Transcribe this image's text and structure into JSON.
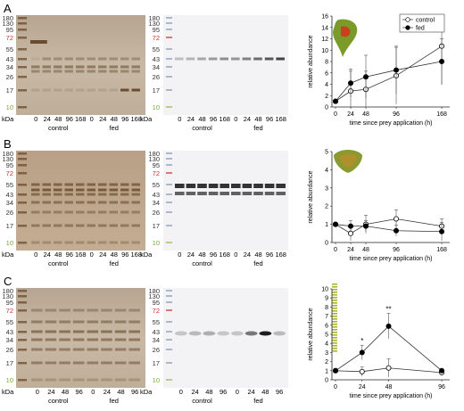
{
  "figure": {
    "panels": [
      {
        "label": "A",
        "gel_markers": [
          "180",
          "130",
          "95",
          "72",
          "55",
          "43",
          "34",
          "26",
          "17",
          "10"
        ],
        "gel_marker_colors": [
          "#333",
          "#333",
          "#333",
          "#d0302c",
          "#333",
          "#333",
          "#333",
          "#333",
          "#333",
          "#7aa83a"
        ],
        "gel_unit": "kDa",
        "blot_markers": [
          "180",
          "130",
          "95",
          "72",
          "55",
          "43",
          "34",
          "26",
          "17",
          "10"
        ],
        "blot_unit": "kDa",
        "lanes": [
          "0",
          "24",
          "48",
          "96",
          "168",
          "0",
          "24",
          "48",
          "96",
          "168"
        ],
        "group_labels": [
          "control",
          "fed"
        ],
        "chart_data": {
          "type": "line",
          "xlabel": "time since prey application (h)",
          "ylabel": "relative abundance",
          "ylim": [
            0,
            16
          ],
          "yticks": [
            0,
            2,
            4,
            6,
            8,
            10,
            12,
            14,
            16
          ],
          "xticks": [
            0,
            24,
            48,
            96,
            168
          ],
          "xlim": [
            0,
            175
          ],
          "legend": "top-right",
          "series": [
            {
              "name": "control",
              "marker": "open-circle",
              "x": [
                0,
                24,
                48,
                96,
                168
              ],
              "y": [
                1,
                2.8,
                3.1,
                5.5,
                10.7
              ],
              "err": [
                0,
                3.5,
                3.2,
                5,
                6.8
              ]
            },
            {
              "name": "fed",
              "marker": "filled-circle",
              "x": [
                0,
                24,
                48,
                96,
                168
              ],
              "y": [
                1,
                4.2,
                5.3,
                6.5,
                8
              ],
              "err": [
                0,
                2.5,
                3.8,
                4.2,
                4
              ]
            }
          ]
        }
      },
      {
        "label": "B",
        "gel_markers": [
          "180",
          "130",
          "95",
          "72",
          "55",
          "43",
          "34",
          "26",
          "17",
          "10"
        ],
        "gel_marker_colors": [
          "#333",
          "#333",
          "#333",
          "#d0302c",
          "#333",
          "#333",
          "#333",
          "#333",
          "#333",
          "#7aa83a"
        ],
        "gel_unit": "kDa",
        "blot_markers": [
          "180",
          "130",
          "95",
          "72",
          "55",
          "43",
          "34",
          "26",
          "17",
          "10"
        ],
        "blot_unit": "kDa",
        "lanes": [
          "0",
          "24",
          "48",
          "96",
          "168",
          "0",
          "24",
          "48",
          "96",
          "168"
        ],
        "group_labels": [
          "control",
          "fed"
        ],
        "chart_data": {
          "type": "line",
          "xlabel": "time since prey application (h)",
          "ylabel": "relative abundance",
          "ylim": [
            0,
            5
          ],
          "yticks": [
            0,
            1,
            2,
            3,
            4,
            5
          ],
          "xticks": [
            0,
            24,
            48,
            96,
            168
          ],
          "xlim": [
            0,
            175
          ],
          "legend": "",
          "series": [
            {
              "name": "control",
              "marker": "open-circle",
              "x": [
                0,
                24,
                48,
                96,
                168
              ],
              "y": [
                1,
                0.5,
                1,
                1.3,
                0.9
              ],
              "err": [
                0,
                0.4,
                0.5,
                0.5,
                0.4
              ]
            },
            {
              "name": "fed",
              "marker": "filled-circle",
              "x": [
                0,
                24,
                48,
                96,
                168
              ],
              "y": [
                1,
                0.9,
                0.9,
                0.65,
                0.6
              ],
              "err": [
                0,
                0.3,
                0.3,
                0.3,
                0.5
              ]
            }
          ]
        }
      },
      {
        "label": "C",
        "gel_markers": [
          "180",
          "130",
          "95",
          "72",
          "55",
          "43",
          "34",
          "26",
          "17",
          "10"
        ],
        "gel_marker_colors": [
          "#333",
          "#333",
          "#333",
          "#d0302c",
          "#333",
          "#333",
          "#333",
          "#333",
          "#333",
          "#7aa83a"
        ],
        "gel_unit": "kDa",
        "blot_markers": [
          "180",
          "130",
          "95",
          "72",
          "55",
          "43",
          "34",
          "26",
          "17",
          "10"
        ],
        "blot_unit": "kDa",
        "lanes": [
          "0",
          "24",
          "48",
          "96",
          "0",
          "24",
          "48",
          "96"
        ],
        "group_labels": [
          "control",
          "fed"
        ],
        "chart_data": {
          "type": "line",
          "xlabel": "time since prey application (h)",
          "ylabel": "relative abundance",
          "ylim": [
            0,
            10
          ],
          "yticks": [
            0,
            1,
            2,
            3,
            4,
            5,
            6,
            7,
            8,
            9,
            10
          ],
          "xticks": [
            0,
            24,
            48,
            96
          ],
          "xlim": [
            0,
            100
          ],
          "legend": "",
          "significance": [
            {
              "x": 24,
              "label": "*"
            },
            {
              "x": 48,
              "label": "**"
            }
          ],
          "series": [
            {
              "name": "control",
              "marker": "open-circle",
              "x": [
                0,
                24,
                48,
                96
              ],
              "y": [
                1,
                0.9,
                1.3,
                0.8
              ],
              "err": [
                0,
                0.5,
                1,
                0.3
              ]
            },
            {
              "name": "fed",
              "marker": "filled-circle",
              "x": [
                0,
                24,
                48,
                96
              ],
              "y": [
                1,
                3,
                5.9,
                1
              ],
              "err": [
                0,
                0.8,
                1.4,
                0.2
              ]
            }
          ]
        }
      }
    ]
  }
}
